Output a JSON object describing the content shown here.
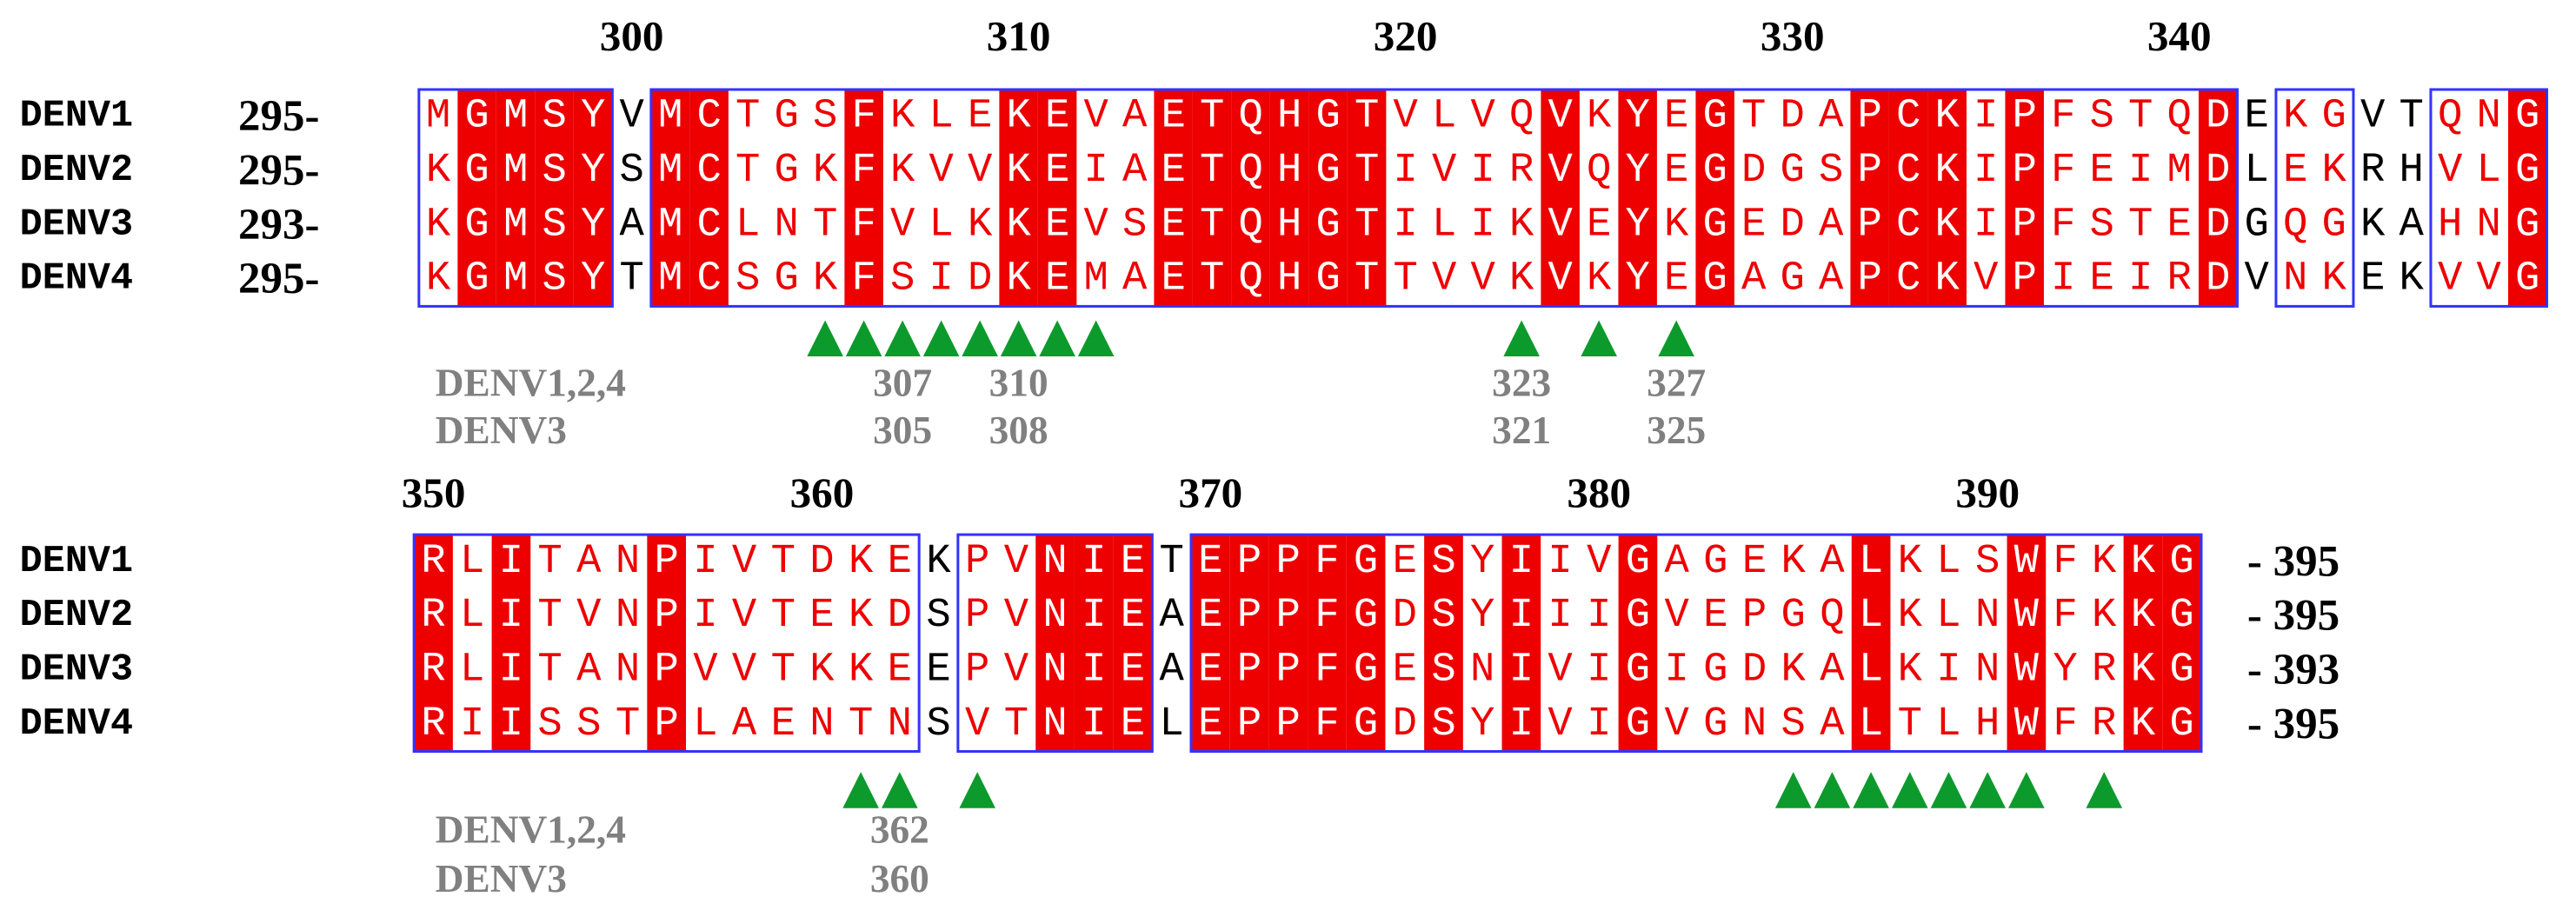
{
  "blocks": [
    {
      "ruler": [
        300,
        310,
        320,
        330,
        340
      ],
      "rows": [
        {
          "name": "DENV1",
          "start": {
            "value": 295,
            "label": "295-"
          },
          "sequence": "MGMSYVMCTGSFKLEKEVAETQHGTVLVQVKYEGTDAPCKIPFSTQDEKGVTQNG"
        },
        {
          "name": "DENV2",
          "start": {
            "value": 295,
            "label": "295-"
          },
          "sequence": "KGMSYSMCTGKFKVVKEIAETQHGTIVIRVQYEGDGSPCKIPFEIMDLEKRHVLG"
        },
        {
          "name": "DENV3",
          "start": {
            "value": 293,
            "label": "293-"
          },
          "sequence": "KGMSYAMCLNTFVLKKEVSETQHGTILIKVEYKGEDAPCKIPFSTEDGQGKAHNG"
        },
        {
          "name": "DENV4",
          "start": {
            "value": 295,
            "label": "295-"
          },
          "sequence": "KGMSYTMCSGKFSIDKEMAETQHGTTVVKVKYEGAGAPCKVPIEIRDVNKEKVVG"
        }
      ],
      "column_style": "trrrrkrrtttrtttrrttrrrrrrttttrtrtrtttrrrtrttttrkttkkttr",
      "markers": [
        305,
        306,
        307,
        308,
        309,
        310,
        311,
        312,
        323,
        325,
        327
      ],
      "annotations": [
        {
          "label": "DENV1,2,4",
          "positions": [
            307,
            310,
            323,
            327
          ]
        },
        {
          "label": "DENV3",
          "positions": [
            305,
            308,
            321,
            325
          ]
        }
      ]
    },
    {
      "ruler": [
        350,
        360,
        370,
        380,
        390
      ],
      "rows": [
        {
          "name": "DENV1",
          "end": {
            "value": 395,
            "label": "- 395"
          },
          "sequence": "RLITANPIVTDKEKPVNIETEPPFGESYIIVGAGEKALKLSWFKKG"
        },
        {
          "name": "DENV2",
          "end": {
            "value": 395,
            "label": "- 395"
          },
          "sequence": "RLITVNPIVTEKDSPVNIEAEPPFGDSYIIIGVEPGQLKLNWFKKG"
        },
        {
          "name": "DENV3",
          "end": {
            "value": 393,
            "label": "- 393"
          },
          "sequence": "RLITANPVVTKKEEPVNIEAEPPFGESNIVIGIGDKALKINWYRKG"
        },
        {
          "name": "DENV4",
          "end": {
            "value": 395,
            "label": "- 395"
          },
          "sequence": "RIISSTPLAENTNSVTNIELEPPFGDSYIVIGVGNSALTLHWFRKG"
        }
      ],
      "column_style": "rtrtttrttttttkttrrrkrrrrrtrtrttrtttttrtttrttrr",
      "markers": [
        361,
        362,
        364,
        385,
        386,
        387,
        388,
        389,
        390,
        391,
        393
      ],
      "annotations": [
        {
          "label": "DENV1,2,4",
          "positions": [
            362
          ]
        },
        {
          "label": "DENV3",
          "positions": [
            360
          ]
        }
      ]
    }
  ]
}
